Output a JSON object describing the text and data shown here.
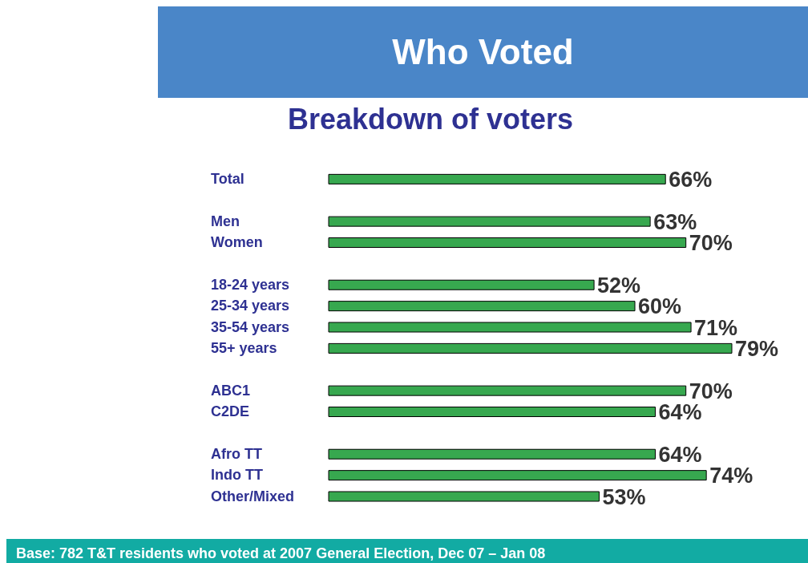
{
  "chart_data": {
    "type": "bar",
    "orientation": "horizontal",
    "title": "Who Voted",
    "subtitle": "Breakdown of voters",
    "categories": [
      "Total",
      null,
      "Men",
      "Women",
      null,
      "18-24 years",
      "25-34 years",
      "35-54 years",
      "55+ years",
      null,
      "ABC1",
      "C2DE",
      null,
      "Afro TT",
      "Indo TT",
      "Other/Mixed"
    ],
    "values": [
      66,
      null,
      63,
      70,
      null,
      52,
      60,
      71,
      79,
      null,
      70,
      64,
      null,
      64,
      74,
      53
    ],
    "value_labels": [
      "66%",
      null,
      "63%",
      "70%",
      null,
      "52%",
      "60%",
      "71%",
      "79%",
      null,
      "70%",
      "64%",
      null,
      "64%",
      "74%",
      "53%"
    ],
    "color": "#37a84f",
    "annotations": [
      "Base: 782 T&T residents who voted at 2007 General Election, Dec 07 – Jan 08"
    ]
  }
}
